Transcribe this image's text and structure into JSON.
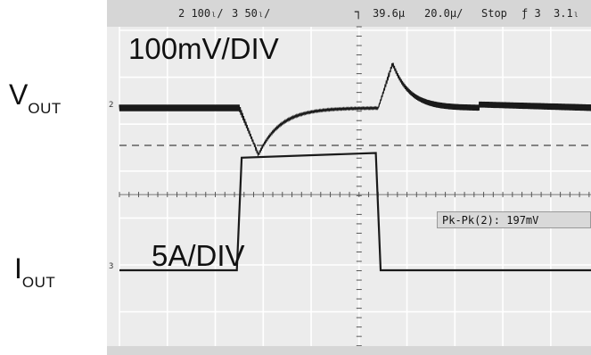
{
  "labels": {
    "vout_main": "V",
    "vout_sub": "OUT",
    "iout_main": "I",
    "iout_sub": "OUT"
  },
  "scope": {
    "header": {
      "ch2_scale": "2 100ₗ/",
      "ch3_scale": "3 50ₗ/",
      "trigger_pos": "39.6µ",
      "timebase": "20.0µ/",
      "run_state": "Stop",
      "trigger_src": "ƒ 3",
      "trigger_level": "3.1ₗ"
    },
    "vout_scale_label": "100mV/DIV",
    "iout_scale_label": "5A/DIV",
    "measurement": "Pk-Pk(2): 197mV",
    "ch2_marker": "2",
    "ch3_marker": "3"
  },
  "colors": {
    "background": "#ececec",
    "grid": "#ffffff",
    "trace": "#1a1a1a",
    "header": "#d6d6d6"
  },
  "chart_data": {
    "type": "line",
    "grid_divisions": {
      "x": 10,
      "y": 8
    },
    "grid": true,
    "series": [
      {
        "name": "VOUT",
        "unit": "mV",
        "description_points": [
          {
            "div": 0.0,
            "level": 0.0,
            "ripple_pp": 14
          },
          {
            "div": 2.5,
            "level": 0.0,
            "ripple_pp": 14
          },
          {
            "div": 2.9,
            "level": -100,
            "ripple_pp": 4
          },
          {
            "div": 4.0,
            "level": -8,
            "ripple_pp": 3
          },
          {
            "div": 5.4,
            "level": 0.0,
            "ripple_pp": 3
          },
          {
            "div": 5.7,
            "level": 95,
            "ripple_pp": 8
          },
          {
            "div": 6.6,
            "level": 10,
            "ripple_pp": 12
          },
          {
            "div": 10.0,
            "level": 0.0,
            "ripple_pp": 14
          }
        ]
      },
      {
        "name": "IOUT",
        "unit": "A",
        "points": [
          {
            "div": 0.0,
            "value": 0
          },
          {
            "div": 2.45,
            "value": 0
          },
          {
            "div": 2.55,
            "value": 12
          },
          {
            "div": 5.35,
            "value": 12.5
          },
          {
            "div": 5.45,
            "value": 0
          },
          {
            "div": 10.0,
            "value": 0
          }
        ]
      }
    ]
  }
}
